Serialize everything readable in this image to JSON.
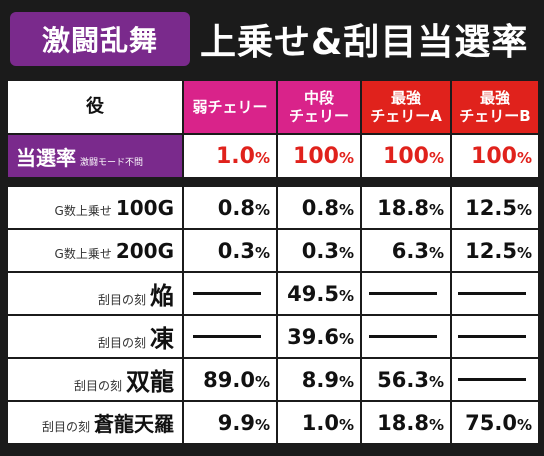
{
  "header": {
    "badge": "激闘乱舞",
    "title": "上乗せ&刮目当選率"
  },
  "columns": {
    "yaku": "役",
    "c1": [
      "弱チェリー"
    ],
    "c2": [
      "中段",
      "チェリー"
    ],
    "c3": [
      "最強",
      "チェリーA"
    ],
    "c4": [
      "最強",
      "チェリーB"
    ]
  },
  "rate_row": {
    "label": "当選率",
    "sub": "激闘モード不問",
    "values": [
      "1.0",
      "100",
      "100",
      "100"
    ],
    "unit": "%"
  },
  "rows": [
    {
      "prefix": "G数上乗せ",
      "main": "100G",
      "values": [
        "0.8",
        "0.8",
        "18.8",
        "12.5"
      ]
    },
    {
      "prefix": "G数上乗せ",
      "main": "200G",
      "values": [
        "0.3",
        "0.3",
        "6.3",
        "12.5"
      ]
    },
    {
      "prefix": "刮目の刻",
      "main": "焔",
      "values": [
        "",
        "49.5",
        "",
        ""
      ]
    },
    {
      "prefix": "刮目の刻",
      "main": "凍",
      "values": [
        "",
        "39.6",
        "",
        ""
      ]
    },
    {
      "prefix": "刮目の刻",
      "main": "双龍",
      "values": [
        "89.0",
        "8.9",
        "56.3",
        ""
      ]
    },
    {
      "prefix": "刮目の刻",
      "main": "蒼龍天羅",
      "values": [
        "9.9",
        "1.0",
        "18.8",
        "75.0"
      ]
    }
  ],
  "colors": {
    "background": "#1b1b1b",
    "purple": "#7a2a8c",
    "pink": "#d9238a",
    "red": "#e0221c"
  }
}
